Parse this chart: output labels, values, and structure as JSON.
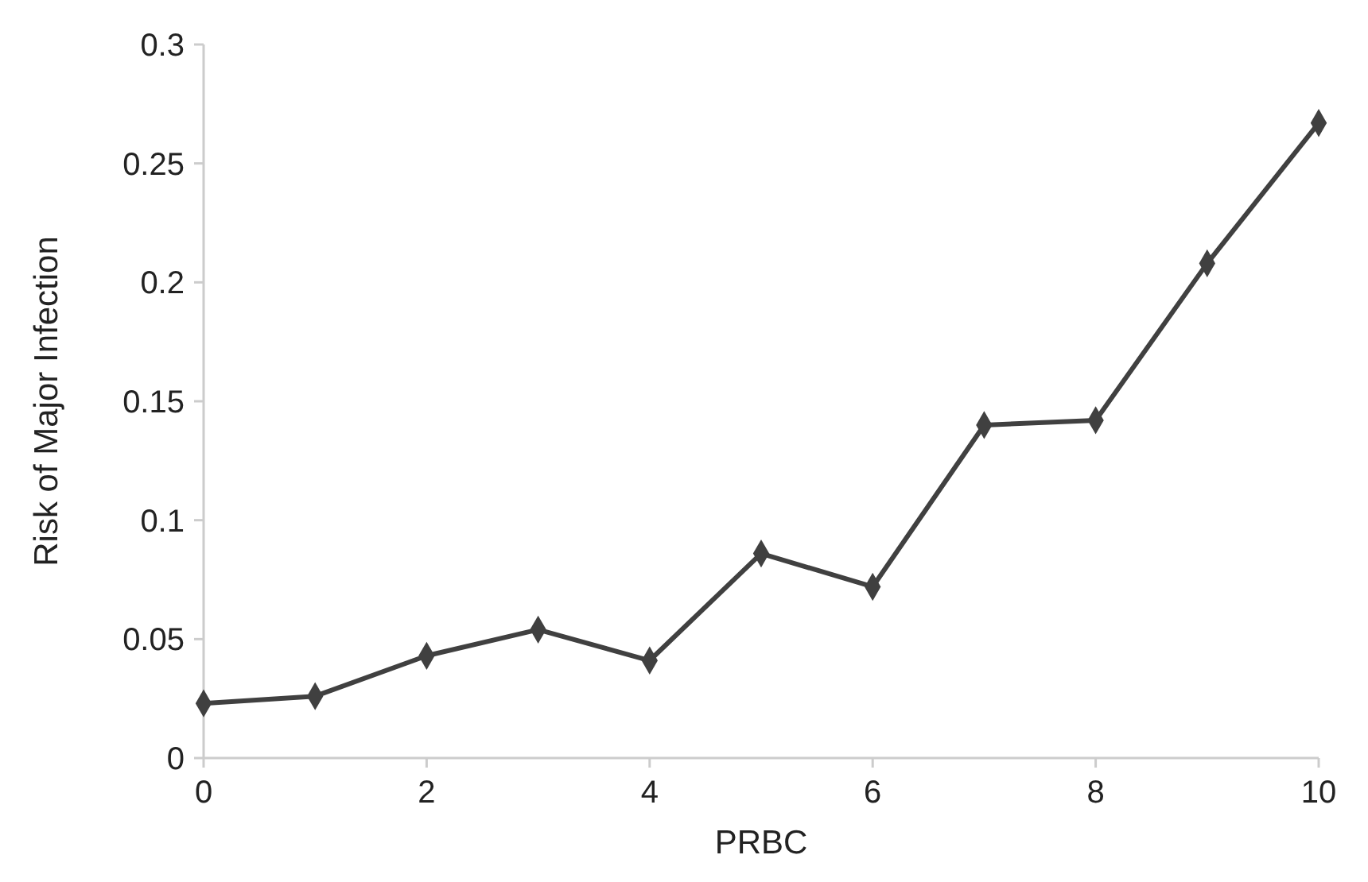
{
  "chart_data": {
    "type": "line",
    "xlabel": "PRBC",
    "ylabel": "Risk of Major Infection",
    "x": [
      0,
      1,
      2,
      3,
      4,
      5,
      6,
      7,
      8,
      9,
      10
    ],
    "series": [
      {
        "color": "#404040",
        "values": [
          0.023,
          0.026,
          0.043,
          0.054,
          0.041,
          0.086,
          0.072,
          0.14,
          0.142,
          0.208,
          0.267
        ]
      }
    ],
    "xlim": [
      0,
      10
    ],
    "xticks": [
      0,
      2,
      4,
      6,
      8,
      10
    ],
    "ylim": [
      0,
      0.3
    ],
    "yticks": [
      0,
      0.05,
      0.1,
      0.15,
      0.2,
      0.25,
      0.3
    ],
    "marker": "diamond",
    "grid": false
  }
}
